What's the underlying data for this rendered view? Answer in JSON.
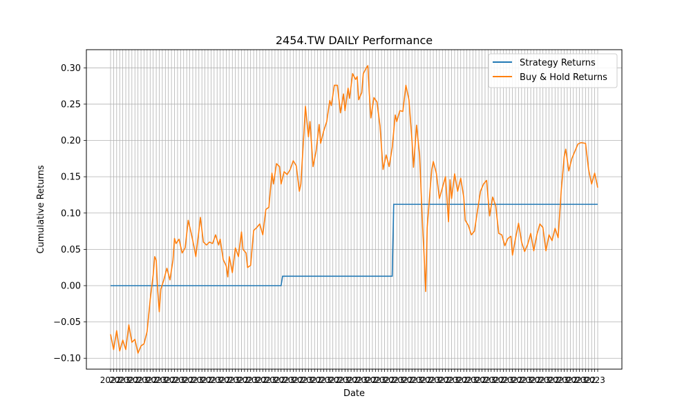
{
  "chart_data": {
    "type": "line",
    "title": "2454.TW DAILY Performance",
    "xlabel": "Date",
    "ylabel": "Cumulative Returns",
    "ylim": [
      -0.115,
      0.325
    ],
    "yticks": [
      -0.1,
      -0.05,
      0.0,
      0.05,
      0.1,
      0.15,
      0.2,
      0.25,
      0.3
    ],
    "ytick_labels": [
      "−0.10",
      "−0.05",
      "0.00",
      "0.05",
      "0.10",
      "0.15",
      "0.20",
      "0.25",
      "0.30"
    ],
    "x_tick_labels_visible": [
      "2022",
      "2023"
    ],
    "grid": true,
    "legend_position": "top-right",
    "n_points": 321,
    "series": [
      {
        "name": "Strategy Returns",
        "color": "#1f77b4",
        "steps": [
          {
            "from_index": 0,
            "to_index": 112,
            "value": 0.0
          },
          {
            "from_index": 113,
            "to_index": 185,
            "value": 0.013
          },
          {
            "from_index": 186,
            "to_index": 320,
            "value": 0.112
          }
        ]
      },
      {
        "name": "Buy & Hold Returns",
        "color": "#ff7f0e",
        "keypoints": [
          [
            0,
            -0.067
          ],
          [
            2,
            -0.088
          ],
          [
            4,
            -0.062
          ],
          [
            6,
            -0.09
          ],
          [
            8,
            -0.075
          ],
          [
            10,
            -0.088
          ],
          [
            12,
            -0.054
          ],
          [
            14,
            -0.078
          ],
          [
            16,
            -0.074
          ],
          [
            18,
            -0.093
          ],
          [
            20,
            -0.083
          ],
          [
            22,
            -0.08
          ],
          [
            24,
            -0.063
          ],
          [
            26,
            -0.02
          ],
          [
            28,
            0.015
          ],
          [
            29,
            0.04
          ],
          [
            30,
            0.035
          ],
          [
            31,
            -0.008
          ],
          [
            32,
            -0.036
          ],
          [
            33,
            -0.005
          ],
          [
            35,
            0.008
          ],
          [
            37,
            0.024
          ],
          [
            39,
            0.008
          ],
          [
            41,
            0.035
          ],
          [
            42,
            0.065
          ],
          [
            43,
            0.058
          ],
          [
            45,
            0.064
          ],
          [
            47,
            0.045
          ],
          [
            49,
            0.052
          ],
          [
            51,
            0.09
          ],
          [
            53,
            0.072
          ],
          [
            55,
            0.052
          ],
          [
            56,
            0.04
          ],
          [
            58,
            0.075
          ],
          [
            59,
            0.094
          ],
          [
            61,
            0.06
          ],
          [
            63,
            0.056
          ],
          [
            65,
            0.06
          ],
          [
            67,
            0.058
          ],
          [
            69,
            0.07
          ],
          [
            71,
            0.056
          ],
          [
            72,
            0.064
          ],
          [
            74,
            0.036
          ],
          [
            76,
            0.027
          ],
          [
            77,
            0.012
          ],
          [
            78,
            0.04
          ],
          [
            80,
            0.018
          ],
          [
            82,
            0.052
          ],
          [
            84,
            0.04
          ],
          [
            86,
            0.074
          ],
          [
            87,
            0.05
          ],
          [
            89,
            0.045
          ],
          [
            90,
            0.025
          ],
          [
            92,
            0.028
          ],
          [
            94,
            0.076
          ],
          [
            96,
            0.08
          ],
          [
            98,
            0.085
          ],
          [
            100,
            0.07
          ],
          [
            102,
            0.105
          ],
          [
            104,
            0.108
          ],
          [
            106,
            0.155
          ],
          [
            107,
            0.14
          ],
          [
            109,
            0.168
          ],
          [
            111,
            0.164
          ],
          [
            112,
            0.14
          ],
          [
            114,
            0.157
          ],
          [
            116,
            0.153
          ],
          [
            118,
            0.16
          ],
          [
            120,
            0.172
          ],
          [
            122,
            0.165
          ],
          [
            124,
            0.13
          ],
          [
            125,
            0.14
          ],
          [
            127,
            0.21
          ],
          [
            128,
            0.247
          ],
          [
            130,
            0.205
          ],
          [
            131,
            0.226
          ],
          [
            133,
            0.164
          ],
          [
            135,
            0.185
          ],
          [
            137,
            0.222
          ],
          [
            138,
            0.196
          ],
          [
            140,
            0.213
          ],
          [
            142,
            0.226
          ],
          [
            144,
            0.255
          ],
          [
            145,
            0.248
          ],
          [
            147,
            0.276
          ],
          [
            149,
            0.276
          ],
          [
            151,
            0.238
          ],
          [
            153,
            0.264
          ],
          [
            154,
            0.241
          ],
          [
            156,
            0.272
          ],
          [
            157,
            0.258
          ],
          [
            159,
            0.292
          ],
          [
            161,
            0.284
          ],
          [
            162,
            0.288
          ],
          [
            163,
            0.256
          ],
          [
            165,
            0.266
          ],
          [
            166,
            0.292
          ],
          [
            168,
            0.3
          ],
          [
            169,
            0.303
          ],
          [
            170,
            0.264
          ],
          [
            171,
            0.231
          ],
          [
            173,
            0.259
          ],
          [
            175,
            0.253
          ],
          [
            177,
            0.22
          ],
          [
            179,
            0.16
          ],
          [
            181,
            0.18
          ],
          [
            183,
            0.164
          ],
          [
            185,
            0.19
          ],
          [
            187,
            0.235
          ],
          [
            188,
            0.226
          ],
          [
            190,
            0.241
          ],
          [
            192,
            0.24
          ],
          [
            194,
            0.276
          ],
          [
            196,
            0.256
          ],
          [
            198,
            0.2
          ],
          [
            199,
            0.163
          ],
          [
            201,
            0.221
          ],
          [
            203,
            0.18
          ],
          [
            205,
            0.08
          ],
          [
            206,
            0.04
          ],
          [
            207,
            -0.008
          ],
          [
            208,
            0.08
          ],
          [
            210,
            0.135
          ],
          [
            211,
            0.16
          ],
          [
            212,
            0.171
          ],
          [
            214,
            0.155
          ],
          [
            216,
            0.12
          ],
          [
            218,
            0.135
          ],
          [
            220,
            0.15
          ],
          [
            222,
            0.088
          ],
          [
            223,
            0.146
          ],
          [
            224,
            0.12
          ],
          [
            226,
            0.154
          ],
          [
            228,
            0.13
          ],
          [
            230,
            0.148
          ],
          [
            232,
            0.122
          ],
          [
            233,
            0.09
          ],
          [
            235,
            0.083
          ],
          [
            237,
            0.07
          ],
          [
            239,
            0.075
          ],
          [
            241,
            0.103
          ],
          [
            243,
            0.13
          ],
          [
            245,
            0.14
          ],
          [
            247,
            0.145
          ],
          [
            249,
            0.096
          ],
          [
            251,
            0.122
          ],
          [
            253,
            0.11
          ],
          [
            255,
            0.072
          ],
          [
            257,
            0.07
          ],
          [
            259,
            0.055
          ],
          [
            261,
            0.065
          ],
          [
            263,
            0.068
          ],
          [
            264,
            0.042
          ],
          [
            266,
            0.065
          ],
          [
            268,
            0.086
          ],
          [
            270,
            0.06
          ],
          [
            272,
            0.047
          ],
          [
            274,
            0.057
          ],
          [
            276,
            0.072
          ],
          [
            278,
            0.048
          ],
          [
            280,
            0.07
          ],
          [
            282,
            0.085
          ],
          [
            284,
            0.08
          ],
          [
            286,
            0.048
          ],
          [
            288,
            0.07
          ],
          [
            290,
            0.062
          ],
          [
            292,
            0.079
          ],
          [
            294,
            0.066
          ],
          [
            296,
            0.13
          ],
          [
            298,
            0.178
          ],
          [
            299,
            0.188
          ],
          [
            301,
            0.158
          ],
          [
            303,
            0.175
          ],
          [
            305,
            0.185
          ],
          [
            307,
            0.195
          ],
          [
            309,
            0.197
          ],
          [
            312,
            0.196
          ],
          [
            314,
            0.16
          ],
          [
            316,
            0.14
          ],
          [
            318,
            0.155
          ],
          [
            320,
            0.135
          ]
        ]
      }
    ]
  }
}
